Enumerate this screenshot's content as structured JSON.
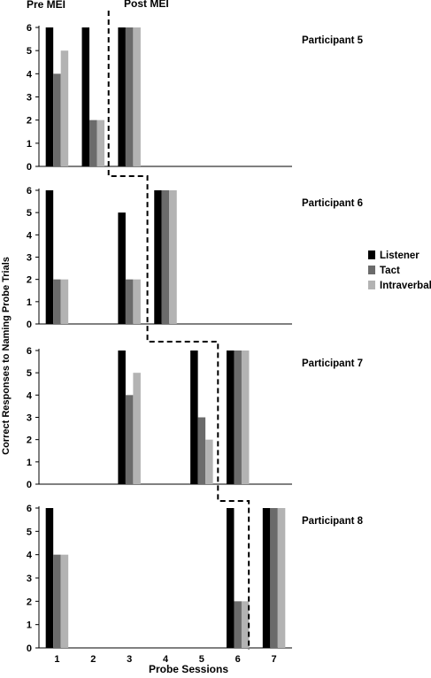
{
  "chart_data": {
    "type": "bar",
    "phase_labels": [
      "Pre MEI",
      "Post MEI"
    ],
    "ylabel": "Correct Responses to Naming Probe Trials",
    "xlabel": "Probe Sessions",
    "categories": [
      "1",
      "2",
      "3",
      "4",
      "5",
      "6",
      "7"
    ],
    "ylim": [
      0,
      6
    ],
    "yticks": [
      "0",
      "1",
      "2",
      "3",
      "4",
      "5",
      "6"
    ],
    "legend_position": "right",
    "series_names": [
      "Listener",
      "Tact",
      "Intraverbal"
    ],
    "colors": {
      "Listener": "#000000",
      "Tact": "#6b6b6b",
      "Intraverbal": "#b3b3b3"
    },
    "panels": [
      {
        "title": "Participant 5",
        "series": [
          {
            "name": "Listener",
            "values": [
              6,
              6,
              6,
              null,
              null,
              null,
              null
            ]
          },
          {
            "name": "Tact",
            "values": [
              4,
              2,
              6,
              null,
              null,
              null,
              null
            ]
          },
          {
            "name": "Intraverbal",
            "values": [
              5,
              2,
              6,
              null,
              null,
              null,
              null
            ]
          }
        ]
      },
      {
        "title": "Participant 6",
        "series": [
          {
            "name": "Listener",
            "values": [
              6,
              null,
              5,
              6,
              null,
              null,
              null
            ]
          },
          {
            "name": "Tact",
            "values": [
              2,
              null,
              2,
              6,
              null,
              null,
              null
            ]
          },
          {
            "name": "Intraverbal",
            "values": [
              2,
              null,
              2,
              6,
              null,
              null,
              null
            ]
          }
        ]
      },
      {
        "title": "Participant 7",
        "series": [
          {
            "name": "Listener",
            "values": [
              null,
              null,
              6,
              null,
              6,
              6,
              null
            ]
          },
          {
            "name": "Tact",
            "values": [
              null,
              null,
              4,
              null,
              3,
              6,
              null
            ]
          },
          {
            "name": "Intraverbal",
            "values": [
              null,
              null,
              5,
              null,
              2,
              6,
              null
            ]
          }
        ]
      },
      {
        "title": "Participant 8",
        "series": [
          {
            "name": "Listener",
            "values": [
              6,
              null,
              null,
              null,
              null,
              6,
              6
            ]
          },
          {
            "name": "Tact",
            "values": [
              4,
              null,
              null,
              null,
              null,
              2,
              6
            ]
          },
          {
            "name": "Intraverbal",
            "values": [
              4,
              null,
              null,
              null,
              null,
              2,
              6
            ]
          }
        ]
      }
    ],
    "phase_change_after": [
      2,
      3,
      5,
      6
    ]
  }
}
